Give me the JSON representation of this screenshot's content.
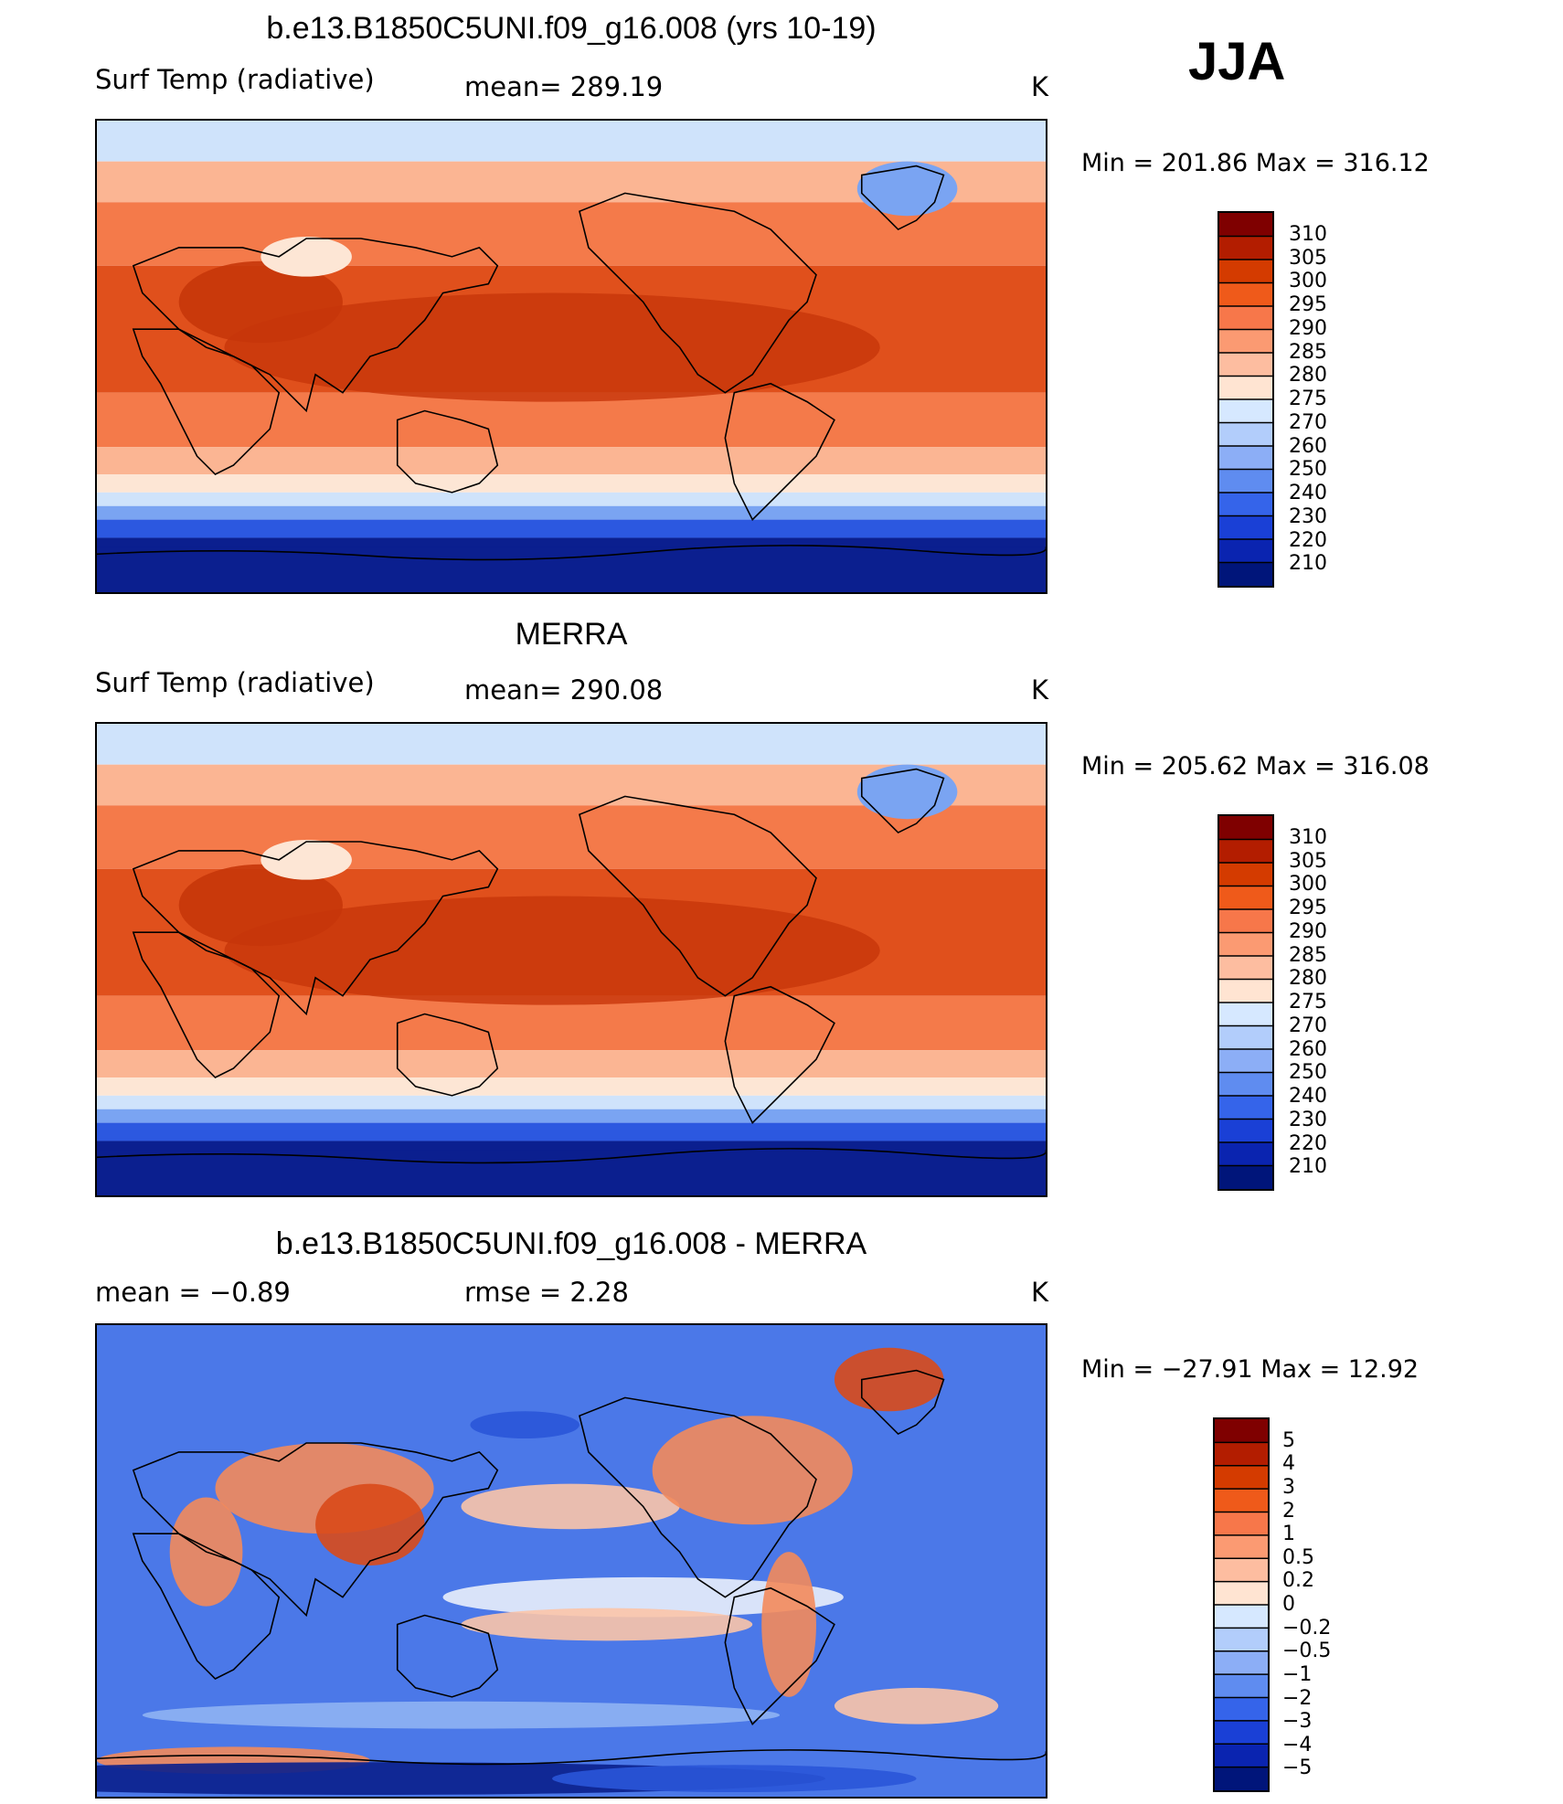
{
  "season": "JJA",
  "units": "K",
  "panels": [
    {
      "id": "model",
      "title": "b.e13.B1850C5UNI.f09_g16.008 (yrs 10-19)",
      "variable": "Surf Temp (radiative)",
      "stat_text": "mean=  289.19",
      "min_max": "Min  =  201.86  Max  =  316.12",
      "colorbar_labels": [
        "310",
        "305",
        "300",
        "295",
        "290",
        "285",
        "280",
        "275",
        "270",
        "260",
        "250",
        "240",
        "230",
        "220",
        "210"
      ],
      "colorbar_colors": [
        "#7f0000",
        "#b31d00",
        "#d43b00",
        "#ef5a1a",
        "#f7774a",
        "#fb9a72",
        "#fdbda0",
        "#ffe4d2",
        "#d6e8ff",
        "#b2cdfb",
        "#8caef6",
        "#5f8cf0",
        "#3564ea",
        "#1a40d6",
        "#0a24b0",
        "#00157a"
      ],
      "map_colors": [
        "#0b1f8f",
        "#2c58e0",
        "#7aa4f2",
        "#cfe3fb",
        "#fde6d5",
        "#fbb593",
        "#f47a4a",
        "#e0501c",
        "#c7360a"
      ]
    },
    {
      "id": "obs",
      "title": "MERRA",
      "variable": "Surf Temp (radiative)",
      "stat_text": "mean=  290.08",
      "min_max": "Min  =  205.62  Max  =  316.08",
      "colorbar_labels": [
        "310",
        "305",
        "300",
        "295",
        "290",
        "285",
        "280",
        "275",
        "270",
        "260",
        "250",
        "240",
        "230",
        "220",
        "210"
      ],
      "colorbar_colors": [
        "#7f0000",
        "#b31d00",
        "#d43b00",
        "#ef5a1a",
        "#f7774a",
        "#fb9a72",
        "#fdbda0",
        "#ffe4d2",
        "#d6e8ff",
        "#b2cdfb",
        "#8caef6",
        "#5f8cf0",
        "#3564ea",
        "#1a40d6",
        "#0a24b0",
        "#00157a"
      ],
      "map_colors": [
        "#0b1f8f",
        "#2c58e0",
        "#7aa4f2",
        "#cfe3fb",
        "#fde6d5",
        "#fbb593",
        "#f47a4a",
        "#e0501c",
        "#c7360a"
      ]
    },
    {
      "id": "diff",
      "title": "b.e13.B1850C5UNI.f09_g16.008 - MERRA",
      "mean_text": "mean =    −0.89",
      "rmse_text": "rmse =     2.28",
      "min_max": "Min  =  −27.91  Max  =    12.92",
      "colorbar_labels": [
        "5",
        "4",
        "3",
        "2",
        "1",
        "0.5",
        "0.2",
        "0",
        "−0.2",
        "−0.5",
        "−1",
        "−2",
        "−3",
        "−4",
        "−5"
      ],
      "colorbar_colors": [
        "#7f0000",
        "#b31d00",
        "#d43b00",
        "#ef5a1a",
        "#f7774a",
        "#fb9a72",
        "#fdbda0",
        "#ffe4d2",
        "#d6e8ff",
        "#b2cdfb",
        "#8caef6",
        "#5f8cf0",
        "#3564ea",
        "#1a40d6",
        "#0a24b0",
        "#00157a"
      ],
      "map_colors": [
        "#0a1f8c",
        "#2a55d8",
        "#4b78e8",
        "#8fb3f3",
        "#e9eefb",
        "#fbc4a8",
        "#f38a5b",
        "#d94a1a"
      ]
    }
  ]
}
